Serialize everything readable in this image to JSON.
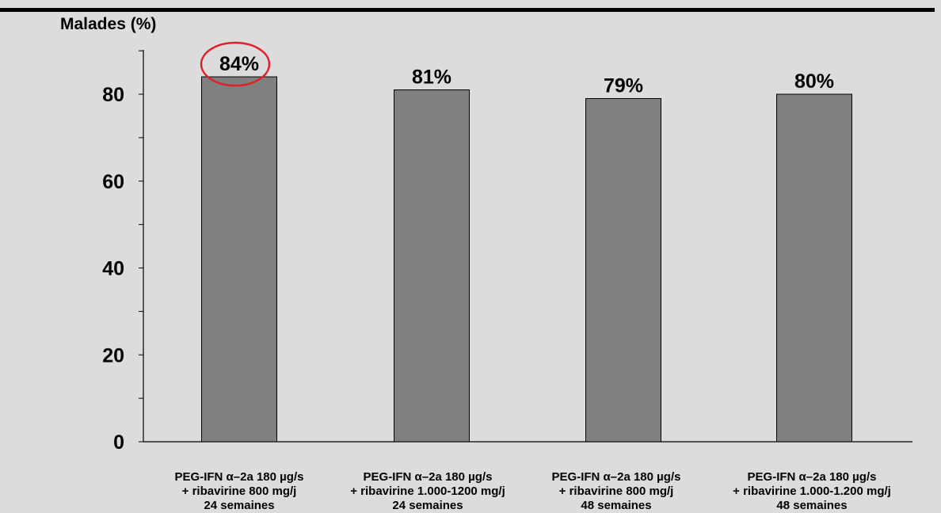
{
  "chart_data": {
    "type": "bar",
    "ylabel": "Malades (%)",
    "ylim": [
      0,
      90
    ],
    "yticks": [
      0,
      20,
      40,
      60,
      80
    ],
    "categories": [
      [
        "PEG-IFN α–2a 180 µg/s",
        "+ ribavirine 800 mg/j",
        "24 semaines"
      ],
      [
        "PEG-IFN α–2a 180 µg/s",
        "+ ribavirine 1.000-1200 mg/j",
        "24 semaines"
      ],
      [
        "PEG-IFN α–2a 180 µg/s",
        "+ ribavirine 800 mg/j",
        "48 semaines"
      ],
      [
        "PEG-IFN α–2a 180 µg/s",
        "+ ribavirine 1.000-1.200 mg/j",
        "48 semaines"
      ]
    ],
    "values": [
      84,
      81,
      79,
      80
    ],
    "data_labels": [
      "84%",
      "81%",
      "79%",
      "80%"
    ],
    "highlighted_index": 0,
    "colors": {
      "bar": "#808080",
      "bar_stroke": "#000000",
      "axis": "#000000",
      "highlight_circle": "#e0202a",
      "background": "#dcdcdc"
    }
  }
}
